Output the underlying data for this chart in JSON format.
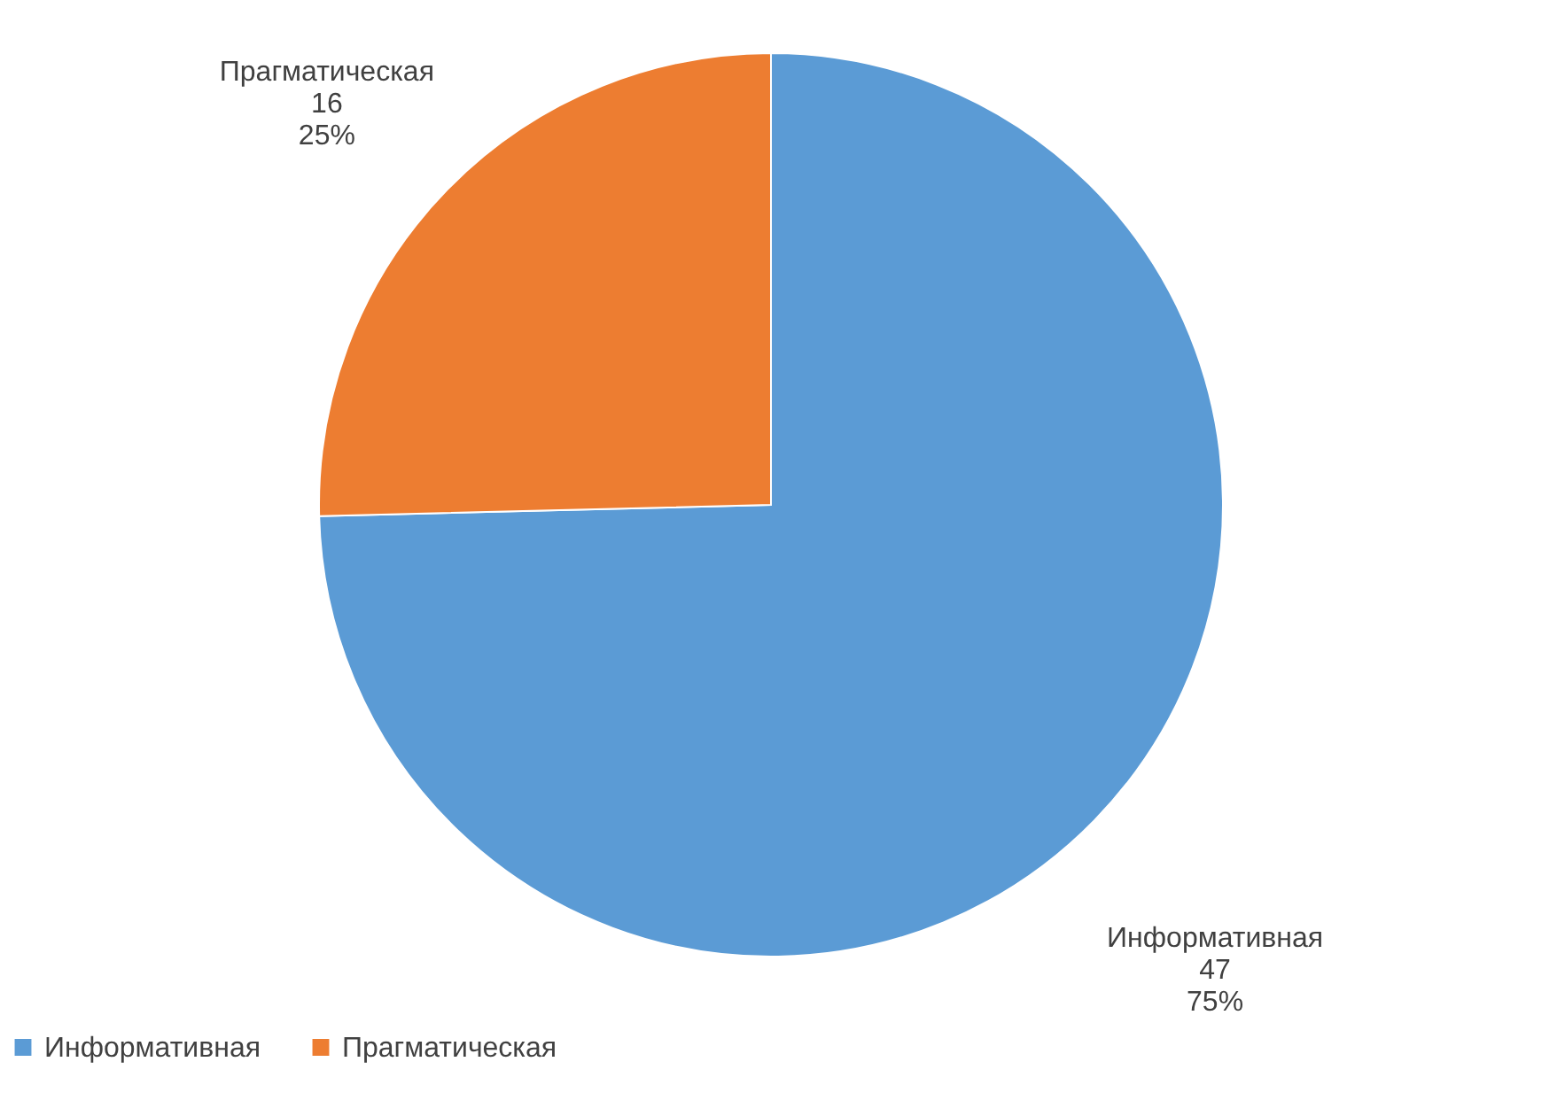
{
  "chart_data": {
    "type": "pie",
    "categories": [
      "Информативная",
      "Прагматическая"
    ],
    "values": [
      47,
      16
    ],
    "colors": [
      "#5b9bd5",
      "#ed7d31"
    ],
    "value_labels": [
      "47\n75%",
      "16\n25%"
    ],
    "legend": "bottom"
  }
}
